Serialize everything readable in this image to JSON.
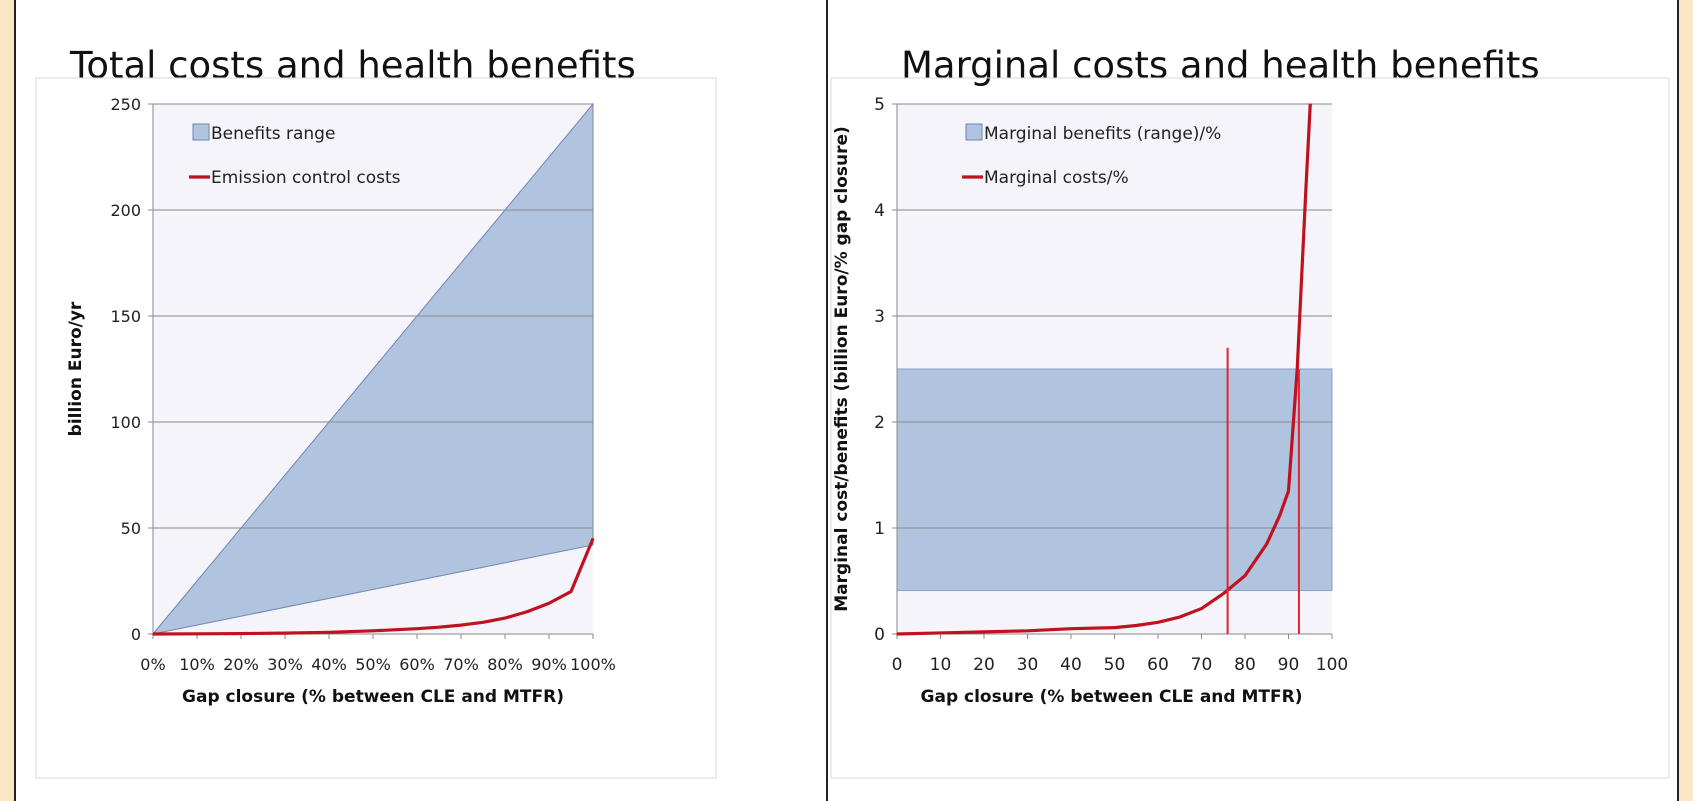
{
  "chart_data": [
    {
      "type": "area",
      "title": "Total costs and health benefits",
      "xlabel": "Gap closure (% between CLE and MTFR)",
      "ylabel": "billion Euro/yr",
      "xlim": [
        0,
        100
      ],
      "ylim": [
        0,
        250
      ],
      "x_ticks": [
        "0%",
        "10%",
        "20%",
        "30%",
        "40%",
        "50%",
        "60%",
        "70%",
        "80%",
        "90%",
        "100%"
      ],
      "y_ticks": [
        "0",
        "50",
        "100",
        "150",
        "200",
        "250"
      ],
      "grid": true,
      "legend_position": "top-left",
      "legend": [
        "Benefits range",
        "Emission control costs"
      ],
      "series": [
        {
          "name": "Benefits range",
          "kind": "range",
          "color": "#b0c4e0",
          "x": [
            0,
            100
          ],
          "low": [
            0,
            42
          ],
          "high": [
            0,
            250
          ]
        },
        {
          "name": "Emission control costs",
          "kind": "line",
          "color": "#c0121e",
          "x": [
            0,
            10,
            20,
            30,
            40,
            50,
            60,
            65,
            70,
            75,
            80,
            85,
            90,
            95,
            100
          ],
          "y": [
            0,
            0.1,
            0.2,
            0.4,
            0.8,
            1.5,
            2.5,
            3.2,
            4.2,
            5.5,
            7.5,
            10.5,
            14.5,
            20,
            45
          ]
        }
      ]
    },
    {
      "type": "area",
      "title": "Marginal costs and health benefits",
      "xlabel": "Gap closure (% between CLE and MTFR)",
      "ylabel": "Marginal cost/benefits (billion Euro/% gap closure)",
      "xlim": [
        0,
        100
      ],
      "ylim": [
        0,
        5
      ],
      "x_ticks": [
        "0",
        "10",
        "20",
        "30",
        "40",
        "50",
        "60",
        "70",
        "80",
        "90",
        "100"
      ],
      "y_ticks": [
        "0",
        "1",
        "2",
        "3",
        "4",
        "5"
      ],
      "grid": true,
      "legend_position": "top-left",
      "legend": [
        "Marginal benefits (range)/%",
        "Marginal costs/%"
      ],
      "series": [
        {
          "name": "Marginal benefits (range)/%",
          "kind": "band",
          "color": "#b0c4e0",
          "x": [
            0,
            100
          ],
          "low": 0.41,
          "high": 2.5
        },
        {
          "name": "Marginal costs/%",
          "kind": "line",
          "color": "#c0121e",
          "x": [
            0,
            10,
            20,
            30,
            40,
            50,
            55,
            60,
            65,
            70,
            75,
            80,
            85,
            88,
            90,
            92,
            94,
            95
          ],
          "y": [
            0,
            0.01,
            0.02,
            0.03,
            0.05,
            0.06,
            0.08,
            0.11,
            0.16,
            0.24,
            0.38,
            0.55,
            0.85,
            1.12,
            1.35,
            2.5,
            4.2,
            5
          ]
        }
      ],
      "vertical_markers": [
        {
          "x": 76,
          "y_top": 2.7,
          "color": "#e8232b"
        },
        {
          "x": 92.4,
          "y_top": 2.5,
          "color": "#e8232b"
        }
      ]
    }
  ]
}
